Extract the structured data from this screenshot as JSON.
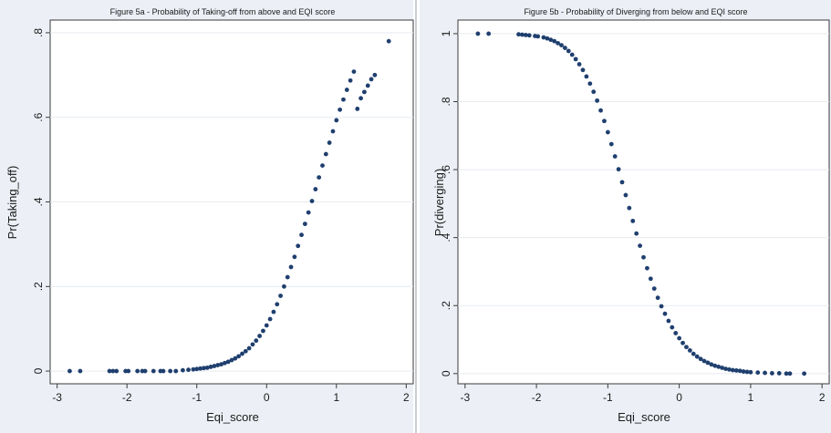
{
  "chart_data": [
    {
      "type": "scatter",
      "title": "Figure 5a - Probability of Taking-off from above and EQI score",
      "xlabel": "Eqi_score",
      "ylabel": "Pr(Taking_off)",
      "xlim": [
        -3.1,
        2.1
      ],
      "ylim": [
        -0.03,
        0.83
      ],
      "xticks": [
        "-3",
        "-2",
        "-1",
        "0",
        "1",
        "2"
      ],
      "xtick_values": [
        -3,
        -2,
        -1,
        0,
        1,
        2
      ],
      "yticks": [
        "0",
        ".2",
        ".4",
        ".6",
        ".8"
      ],
      "ytick_values": [
        0,
        0.2,
        0.4,
        0.6,
        0.8
      ],
      "grid": true,
      "marker_color": "#1f3f6e",
      "points": [
        {
          "x": -2.82,
          "y": 0.0
        },
        {
          "x": -2.67,
          "y": 0.0
        },
        {
          "x": -2.25,
          "y": 0.0
        },
        {
          "x": -2.2,
          "y": 0.0
        },
        {
          "x": -2.15,
          "y": 0.0
        },
        {
          "x": -2.02,
          "y": 0.0
        },
        {
          "x": -1.98,
          "y": 0.0
        },
        {
          "x": -1.85,
          "y": 0.0
        },
        {
          "x": -1.78,
          "y": 0.0
        },
        {
          "x": -1.74,
          "y": 0.0
        },
        {
          "x": -1.62,
          "y": 0.0
        },
        {
          "x": -1.52,
          "y": 0.0
        },
        {
          "x": -1.48,
          "y": 0.0
        },
        {
          "x": -1.38,
          "y": 0.0
        },
        {
          "x": -1.3,
          "y": 0.0
        },
        {
          "x": -1.2,
          "y": 0.002
        },
        {
          "x": -1.12,
          "y": 0.003
        },
        {
          "x": -1.05,
          "y": 0.004
        },
        {
          "x": -1.0,
          "y": 0.005
        },
        {
          "x": -0.95,
          "y": 0.006
        },
        {
          "x": -0.9,
          "y": 0.007
        },
        {
          "x": -0.85,
          "y": 0.008
        },
        {
          "x": -0.8,
          "y": 0.01
        },
        {
          "x": -0.75,
          "y": 0.012
        },
        {
          "x": -0.7,
          "y": 0.014
        },
        {
          "x": -0.65,
          "y": 0.016
        },
        {
          "x": -0.6,
          "y": 0.019
        },
        {
          "x": -0.55,
          "y": 0.022
        },
        {
          "x": -0.5,
          "y": 0.026
        },
        {
          "x": -0.45,
          "y": 0.03
        },
        {
          "x": -0.4,
          "y": 0.035
        },
        {
          "x": -0.35,
          "y": 0.041
        },
        {
          "x": -0.3,
          "y": 0.047
        },
        {
          "x": -0.25,
          "y": 0.054
        },
        {
          "x": -0.2,
          "y": 0.063
        },
        {
          "x": -0.15,
          "y": 0.072
        },
        {
          "x": -0.1,
          "y": 0.083
        },
        {
          "x": -0.05,
          "y": 0.095
        },
        {
          "x": 0.0,
          "y": 0.108
        },
        {
          "x": 0.05,
          "y": 0.123
        },
        {
          "x": 0.1,
          "y": 0.14
        },
        {
          "x": 0.15,
          "y": 0.158
        },
        {
          "x": 0.2,
          "y": 0.178
        },
        {
          "x": 0.25,
          "y": 0.2
        },
        {
          "x": 0.3,
          "y": 0.222
        },
        {
          "x": 0.35,
          "y": 0.246
        },
        {
          "x": 0.4,
          "y": 0.27
        },
        {
          "x": 0.45,
          "y": 0.296
        },
        {
          "x": 0.5,
          "y": 0.322
        },
        {
          "x": 0.55,
          "y": 0.348
        },
        {
          "x": 0.6,
          "y": 0.375
        },
        {
          "x": 0.65,
          "y": 0.402
        },
        {
          "x": 0.7,
          "y": 0.43
        },
        {
          "x": 0.75,
          "y": 0.458
        },
        {
          "x": 0.8,
          "y": 0.486
        },
        {
          "x": 0.85,
          "y": 0.513
        },
        {
          "x": 0.9,
          "y": 0.54
        },
        {
          "x": 0.95,
          "y": 0.567
        },
        {
          "x": 1.0,
          "y": 0.593
        },
        {
          "x": 1.05,
          "y": 0.618
        },
        {
          "x": 1.1,
          "y": 0.642
        },
        {
          "x": 1.15,
          "y": 0.665
        },
        {
          "x": 1.2,
          "y": 0.687
        },
        {
          "x": 1.25,
          "y": 0.708
        },
        {
          "x": 1.3,
          "y": 0.62
        },
        {
          "x": 1.35,
          "y": 0.645
        },
        {
          "x": 1.4,
          "y": 0.66
        },
        {
          "x": 1.45,
          "y": 0.675
        },
        {
          "x": 1.5,
          "y": 0.69
        },
        {
          "x": 1.55,
          "y": 0.7
        },
        {
          "x": 1.75,
          "y": 0.78
        }
      ]
    },
    {
      "type": "scatter",
      "title": "Figure 5b - Probability of Diverging from below and EQI score",
      "xlabel": "Eqi_score",
      "ylabel": "Pr(diverging)",
      "xlim": [
        -3.1,
        2.1
      ],
      "ylim": [
        -0.03,
        1.04
      ],
      "xticks": [
        "-3",
        "-2",
        "-1",
        "0",
        "1",
        "2"
      ],
      "xtick_values": [
        -3,
        -2,
        -1,
        0,
        1,
        2
      ],
      "yticks": [
        "0",
        ".2",
        ".4",
        ".6",
        ".8",
        "1"
      ],
      "ytick_values": [
        0,
        0.2,
        0.4,
        0.6,
        0.8,
        1.0
      ],
      "grid": true,
      "marker_color": "#1f3f6e",
      "points": [
        {
          "x": -2.82,
          "y": 1.0
        },
        {
          "x": -2.67,
          "y": 1.0
        },
        {
          "x": -2.25,
          "y": 0.998
        },
        {
          "x": -2.2,
          "y": 0.997
        },
        {
          "x": -2.15,
          "y": 0.996
        },
        {
          "x": -2.1,
          "y": 0.995
        },
        {
          "x": -2.02,
          "y": 0.993
        },
        {
          "x": -1.98,
          "y": 0.992
        },
        {
          "x": -1.9,
          "y": 0.989
        },
        {
          "x": -1.85,
          "y": 0.986
        },
        {
          "x": -1.8,
          "y": 0.982
        },
        {
          "x": -1.75,
          "y": 0.978
        },
        {
          "x": -1.7,
          "y": 0.972
        },
        {
          "x": -1.65,
          "y": 0.966
        },
        {
          "x": -1.6,
          "y": 0.958
        },
        {
          "x": -1.55,
          "y": 0.949
        },
        {
          "x": -1.5,
          "y": 0.938
        },
        {
          "x": -1.45,
          "y": 0.925
        },
        {
          "x": -1.4,
          "y": 0.91
        },
        {
          "x": -1.35,
          "y": 0.893
        },
        {
          "x": -1.3,
          "y": 0.874
        },
        {
          "x": -1.25,
          "y": 0.853
        },
        {
          "x": -1.2,
          "y": 0.829
        },
        {
          "x": -1.15,
          "y": 0.803
        },
        {
          "x": -1.1,
          "y": 0.774
        },
        {
          "x": -1.05,
          "y": 0.743
        },
        {
          "x": -1.0,
          "y": 0.71
        },
        {
          "x": -0.95,
          "y": 0.675
        },
        {
          "x": -0.9,
          "y": 0.639
        },
        {
          "x": -0.85,
          "y": 0.601
        },
        {
          "x": -0.8,
          "y": 0.563
        },
        {
          "x": -0.75,
          "y": 0.525
        },
        {
          "x": -0.7,
          "y": 0.487
        },
        {
          "x": -0.65,
          "y": 0.449
        },
        {
          "x": -0.6,
          "y": 0.412
        },
        {
          "x": -0.55,
          "y": 0.376
        },
        {
          "x": -0.5,
          "y": 0.342
        },
        {
          "x": -0.45,
          "y": 0.31
        },
        {
          "x": -0.4,
          "y": 0.279
        },
        {
          "x": -0.35,
          "y": 0.25
        },
        {
          "x": -0.3,
          "y": 0.223
        },
        {
          "x": -0.25,
          "y": 0.198
        },
        {
          "x": -0.2,
          "y": 0.176
        },
        {
          "x": -0.15,
          "y": 0.155
        },
        {
          "x": -0.1,
          "y": 0.136
        },
        {
          "x": -0.05,
          "y": 0.119
        },
        {
          "x": 0.0,
          "y": 0.104
        },
        {
          "x": 0.05,
          "y": 0.09
        },
        {
          "x": 0.1,
          "y": 0.078
        },
        {
          "x": 0.15,
          "y": 0.068
        },
        {
          "x": 0.2,
          "y": 0.058
        },
        {
          "x": 0.25,
          "y": 0.05
        },
        {
          "x": 0.3,
          "y": 0.043
        },
        {
          "x": 0.35,
          "y": 0.037
        },
        {
          "x": 0.4,
          "y": 0.032
        },
        {
          "x": 0.45,
          "y": 0.027
        },
        {
          "x": 0.5,
          "y": 0.023
        },
        {
          "x": 0.55,
          "y": 0.02
        },
        {
          "x": 0.6,
          "y": 0.017
        },
        {
          "x": 0.65,
          "y": 0.014
        },
        {
          "x": 0.7,
          "y": 0.012
        },
        {
          "x": 0.75,
          "y": 0.01
        },
        {
          "x": 0.8,
          "y": 0.009
        },
        {
          "x": 0.85,
          "y": 0.008
        },
        {
          "x": 0.9,
          "y": 0.006
        },
        {
          "x": 0.95,
          "y": 0.005
        },
        {
          "x": 1.0,
          "y": 0.004
        },
        {
          "x": 1.1,
          "y": 0.003
        },
        {
          "x": 1.2,
          "y": 0.002
        },
        {
          "x": 1.3,
          "y": 0.001
        },
        {
          "x": 1.4,
          "y": 0.001
        },
        {
          "x": 1.5,
          "y": 0.0
        },
        {
          "x": 1.55,
          "y": 0.0
        },
        {
          "x": 1.75,
          "y": 0.0
        }
      ]
    }
  ]
}
